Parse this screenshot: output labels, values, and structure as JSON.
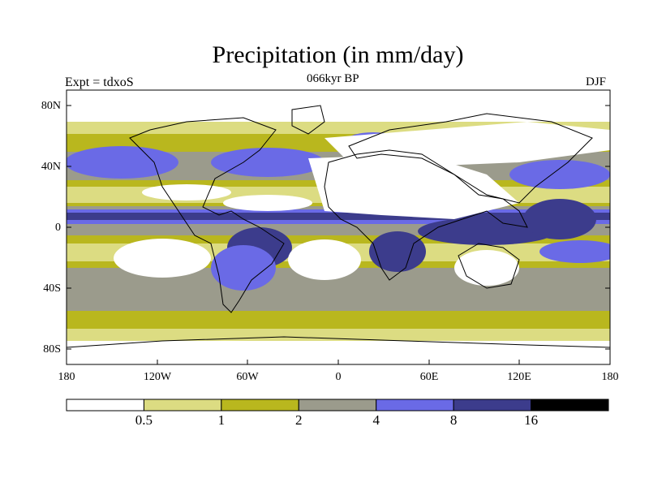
{
  "title": "Precipitation (in mm/day)",
  "subtitle_left": "Expt = tdxoS",
  "subtitle_center": "066kyr BP",
  "subtitle_right": "DJF",
  "lat_labels": [
    "80N",
    "40N",
    "0",
    "40S",
    "80S"
  ],
  "lon_labels": [
    "180",
    "120W",
    "60W",
    "0",
    "60E",
    "120E",
    "180"
  ],
  "legend": {
    "levels": [
      "0.5",
      "1",
      "2",
      "4",
      "8",
      "16"
    ],
    "colors": [
      "#ffffff",
      "#dcdc82",
      "#b9b71e",
      "#9b9b8c",
      "#6a6ae6",
      "#3c3c8c",
      "#000000"
    ]
  }
}
